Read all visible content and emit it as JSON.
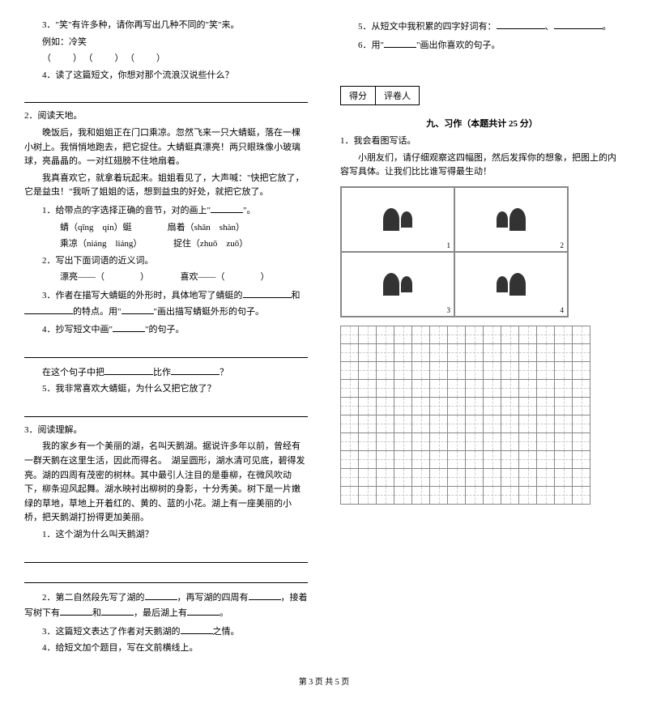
{
  "left": {
    "q3_intro": "3．\"笑\"有许多种，请你再写出几种不同的\"笑\"来。",
    "q3_example": "例如：冷笑",
    "q4": "4．读了这篇短文，你想对那个流浪汉说些什么？",
    "r2_title": "2．阅读天地。",
    "r2_p1": "晚饭后，我和姐姐正在门口乘凉。忽然飞来一只大蜻蜓，落在一棵小树上。我悄悄地跑去，把它捉住。大蜻蜓真漂亮！两只眼珠像小玻璃球，亮晶晶的。一对红翅膀不住地扇着。",
    "r2_p2": "我真喜欢它，就拿着玩起来。姐姐看见了，大声喊：\"快把它放了，它是益虫！\"我听了姐姐的话，想到益虫的好处，就把它放了。",
    "r2_q1": "1．给带点的字选择正确的音节，对的画上\"",
    "r2_q1_end": "\"。",
    "r2_q1_a": "蜻（qīng　qín）蜓",
    "r2_q1_b": "扇着（shān　shàn）",
    "r2_q1_c": "乘凉（niáng　liáng）",
    "r2_q1_d": "捉住（zhuō　zuō）",
    "r2_q2": "2．写出下面词语的近义词。",
    "r2_q2_a": "漂亮——（　　　　）",
    "r2_q2_b": "喜欢——（　　　　）",
    "r2_q3": "3．作者在描写大蜻蜓的外形时，具体地写了蜻蜓的",
    "r2_q3_and": "和",
    "r2_q3_end": "的特点。用\"",
    "r2_q3_end2": "\"画出描写蜻蜓外形的句子。",
    "r2_q4": "4．抄写短文中画\"",
    "r2_q4_end": "\"的句子。",
    "r2_q4_sub": "在这个句子中把",
    "r2_q4_sub2": "比作",
    "r2_q5": "5．我非常喜欢大蜻蜓，为什么又把它放了？",
    "r3_title": "3．阅读理解。",
    "r3_p": "我的家乡有一个美丽的湖，名叫天鹅湖。据说许多年以前，曾经有一群天鹅在这里生活，因此而得名。　湖呈圆形，湖水清可见底，碧得发亮。湖的四周有茂密的树林。其中最引人注目的是垂柳，在微风吹动下，柳条迎风起舞。湖水映衬出柳树的身影，十分秀美。树下是一片嫩绿的草地，草地上开着红的、黄的、蓝的小花。湖上有一座美丽的小桥，把天鹅湖打扮得更加美丽。",
    "r3_q1": "1．这个湖为什么叫天鹅湖？",
    "r3_q2": "2．第二自然段先写了湖的",
    "r3_q2_b": "，再写湖的四周有",
    "r3_q2_c": "，接着写树下有",
    "r3_q2_d": "和",
    "r3_q2_e": "，最后湖上有",
    "r3_q3": "3．这篇短文表达了作者对天鹅湖的",
    "r3_q3_end": "之情。",
    "r3_q4": "4．给短文加个题目，写在文前横线上。"
  },
  "right": {
    "r_q5": "5．从短文中我积累的四字好词有：",
    "r_q6": "6．用\"",
    "r_q6_end": "\"画出你喜欢的句子。",
    "score_a": "得分",
    "score_b": "评卷人",
    "section": "九、习作（本题共计 25 分）",
    "w_title": "1．我会看图写话。",
    "w_text": "小朋友们，请仔细观察这四幅图，然后发挥你的想象，把图上的内容写具体。让我们比比谁写得最生动！"
  },
  "writing_grid": {
    "rows": 10,
    "cols": 14
  },
  "footer": "第 3 页 共 5 页"
}
